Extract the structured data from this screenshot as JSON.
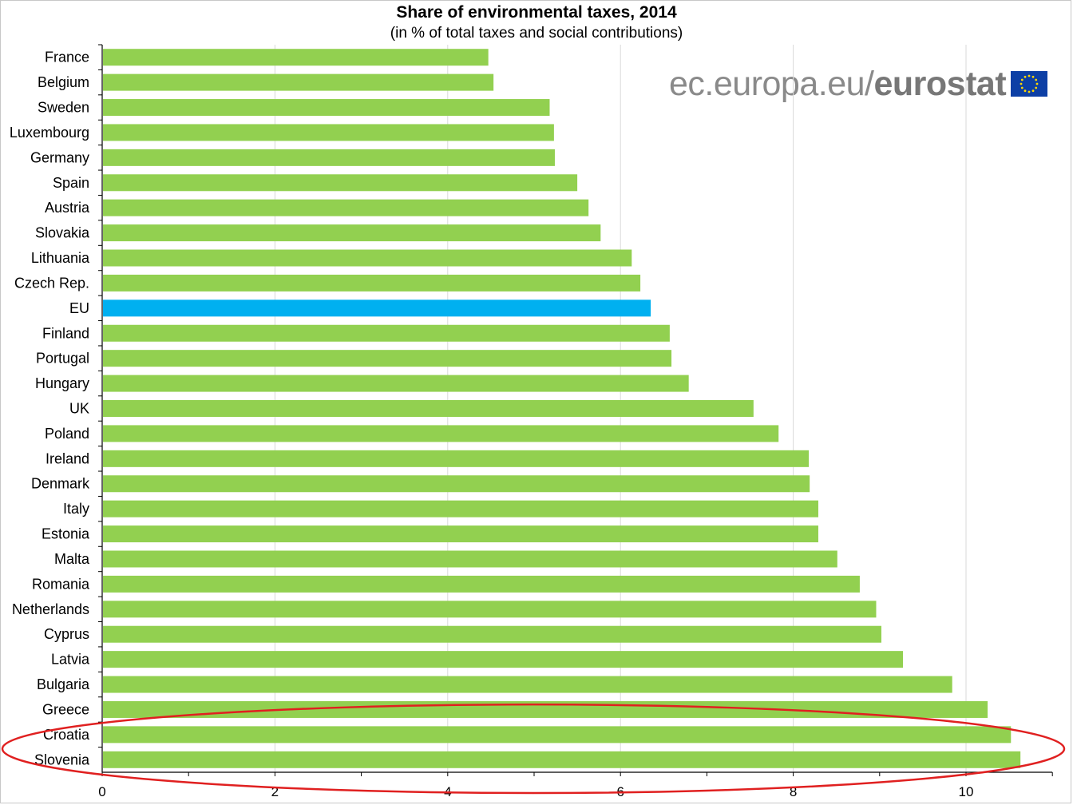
{
  "chart_data": {
    "type": "bar",
    "orientation": "horizontal",
    "title": "Share of environmental taxes, 2014",
    "subtitle": "(in % of total taxes and social contributions)",
    "xlabel": "",
    "ylabel": "",
    "xlim": [
      0,
      11
    ],
    "x_ticks": [
      0,
      2,
      4,
      6,
      8,
      10
    ],
    "grid": "vertical",
    "categories": [
      "France",
      "Belgium",
      "Sweden",
      "Luxembourg",
      "Germany",
      "Spain",
      "Austria",
      "Slovakia",
      "Lithuania",
      "Czech Rep.",
      "EU",
      "Finland",
      "Portugal",
      "Hungary",
      "UK",
      "Poland",
      "Ireland",
      "Denmark",
      "Italy",
      "Estonia",
      "Malta",
      "Romania",
      "Netherlands",
      "Cyprus",
      "Latvia",
      "Bulgaria",
      "Greece",
      "Croatia",
      "Slovenia"
    ],
    "values": [
      4.47,
      4.53,
      5.18,
      5.23,
      5.24,
      5.5,
      5.63,
      5.77,
      6.13,
      6.23,
      6.35,
      6.57,
      6.59,
      6.79,
      7.54,
      7.83,
      8.18,
      8.19,
      8.29,
      8.29,
      8.51,
      8.77,
      8.96,
      9.02,
      9.27,
      9.84,
      10.25,
      10.52,
      10.63
    ],
    "highlight": "EU",
    "colors": {
      "bar": "#92d050",
      "highlight_bar": "#00b0f0",
      "grid": "#d9d9d9",
      "annotation_ellipse": "#e02020"
    },
    "annotation": {
      "shape": "ellipse",
      "encloses": [
        "Croatia",
        "Slovenia"
      ]
    }
  },
  "branding": {
    "site": "ec.europa.eu/",
    "name": "eurostat",
    "flag_icon": "eu-flag-icon"
  }
}
